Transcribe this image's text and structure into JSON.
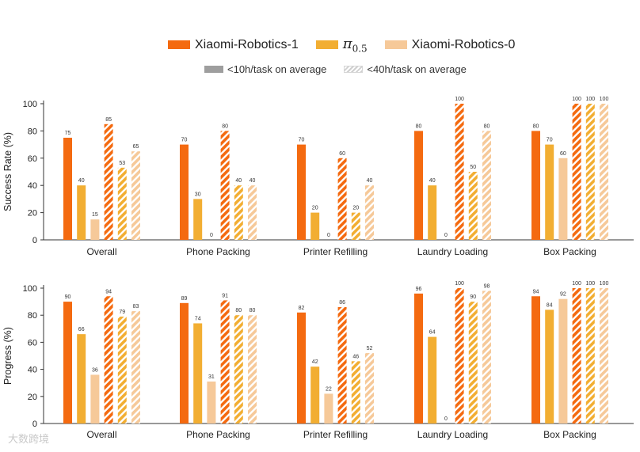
{
  "legend": {
    "xr1": "Xiaomi-Robotics-1",
    "pi_symbol": "π",
    "pi_sub": "0.5",
    "xr0": "Xiaomi-Robotics-0",
    "short_label": "<10h/task on average",
    "long_label": "<40h/task on average"
  },
  "colors": {
    "xr1": "#f46a10",
    "pi05": "#f2ae32",
    "xr0": "#f6c999",
    "short_swatch": "#9e9e9e",
    "long_swatch": "#cfcfcf"
  },
  "watermark": "大数跨境",
  "chart_data": [
    {
      "type": "bar",
      "ylabel": "Success Rate (%)",
      "xlabel": "",
      "ylim": [
        0,
        100
      ],
      "yticks": [
        0,
        20,
        40,
        60,
        80,
        100
      ],
      "categories": [
        "Overall",
        "Phone Packing",
        "Printer Refilling",
        "Laundry Loading",
        "Box Packing"
      ],
      "series": [
        {
          "name": "Xiaomi-Robotics-1",
          "hours": "<10h/task on average",
          "values": [
            75,
            70,
            70,
            80,
            80
          ],
          "labels": [
            "75",
            "70",
            "70",
            "80",
            "80"
          ]
        },
        {
          "name": "π0.5",
          "hours": "<10h/task on average",
          "values": [
            40,
            30,
            20,
            40,
            70
          ],
          "labels": [
            "40",
            "30",
            "20",
            "40",
            "70"
          ]
        },
        {
          "name": "Xiaomi-Robotics-0",
          "hours": "<10h/task on average",
          "values": [
            15,
            0,
            0,
            0,
            60
          ],
          "labels": [
            "15",
            "0",
            "0",
            "0",
            "60"
          ]
        },
        {
          "name": "Xiaomi-Robotics-1",
          "hours": "<40h/task on average",
          "values": [
            85,
            80,
            60,
            100,
            100
          ],
          "labels": [
            "85",
            "80",
            "60",
            "100",
            "100"
          ]
        },
        {
          "name": "π0.5",
          "hours": "<40h/task on average",
          "values": [
            53,
            40,
            20,
            50,
            100
          ],
          "labels": [
            "53",
            "40",
            "20",
            "50",
            "100"
          ]
        },
        {
          "name": "Xiaomi-Robotics-0",
          "hours": "<40h/task on average",
          "values": [
            65,
            40,
            40,
            80,
            100
          ],
          "labels": [
            "65",
            "40",
            "40",
            "80",
            "100"
          ]
        }
      ]
    },
    {
      "type": "bar",
      "ylabel": "Progress (%)",
      "xlabel": "",
      "ylim": [
        0,
        100
      ],
      "yticks": [
        0,
        20,
        40,
        60,
        80,
        100
      ],
      "categories": [
        "Overall",
        "Phone Packing",
        "Printer Refilling",
        "Laundry Loading",
        "Box Packing"
      ],
      "series": [
        {
          "name": "Xiaomi-Robotics-1",
          "hours": "<10h/task on average",
          "values": [
            90,
            89,
            82,
            96,
            94
          ],
          "labels": [
            "90",
            "89",
            "82",
            "96",
            "94"
          ]
        },
        {
          "name": "π0.5",
          "hours": "<10h/task on average",
          "values": [
            66,
            74,
            42,
            64,
            84
          ],
          "labels": [
            "66",
            "74",
            "42",
            "64",
            "84"
          ]
        },
        {
          "name": "Xiaomi-Robotics-0",
          "hours": "<10h/task on average",
          "values": [
            36,
            31,
            22,
            0,
            92
          ],
          "labels": [
            "36",
            "31",
            "22",
            "0",
            "92"
          ]
        },
        {
          "name": "Xiaomi-Robotics-1",
          "hours": "<40h/task on average",
          "values": [
            94,
            91,
            86,
            100,
            100
          ],
          "labels": [
            "94",
            "91",
            "86",
            "100",
            "100"
          ]
        },
        {
          "name": "π0.5",
          "hours": "<40h/task on average",
          "values": [
            79,
            80,
            46,
            90,
            100
          ],
          "labels": [
            "79",
            "80",
            "46",
            "90",
            "100"
          ]
        },
        {
          "name": "Xiaomi-Robotics-0",
          "hours": "<40h/task on average",
          "values": [
            83,
            80,
            52,
            98,
            100
          ],
          "labels": [
            "83",
            "80",
            "52",
            "98",
            "100"
          ]
        }
      ]
    }
  ]
}
